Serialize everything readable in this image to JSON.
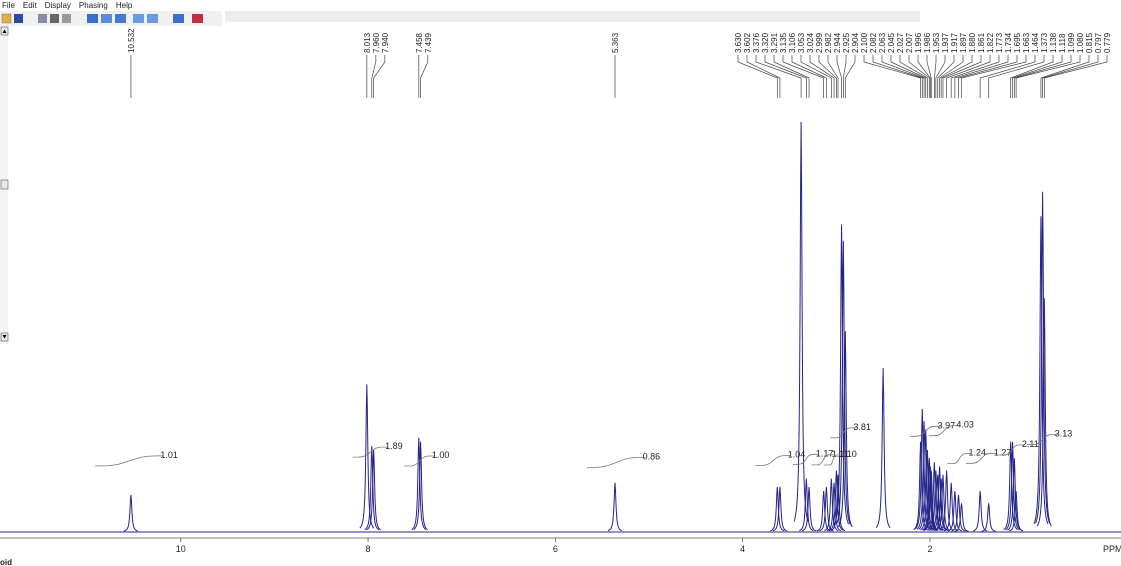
{
  "menu": [
    "File",
    "Edit",
    "Display",
    "Phasing",
    "Help"
  ],
  "status_text": "oid",
  "chart_data": {
    "type": "spectrum",
    "x_label": "PPM",
    "xlim": [
      11.93,
      -0.04
    ],
    "ylim": [
      0,
      100
    ],
    "xticks": [
      10,
      8,
      6,
      4,
      2
    ],
    "color": "#24248a",
    "x": [
      10.532,
      8.013,
      7.96,
      7.94,
      7.458,
      7.439,
      5.363,
      3.63,
      3.602,
      3.376,
      3.32,
      3.291,
      3.135,
      3.106,
      3.053,
      3.024,
      2.999,
      2.982,
      2.944,
      2.925,
      2.904,
      2.5,
      2.1,
      2.082,
      2.063,
      2.045,
      2.027,
      2.007,
      1.996,
      1.986,
      1.953,
      1.937,
      1.917,
      1.897,
      1.88,
      1.861,
      1.822,
      1.773,
      1.734,
      1.695,
      1.663,
      1.464,
      1.373,
      1.138,
      1.118,
      1.099,
      1.08,
      0.815,
      0.797,
      0.779
    ],
    "values": [
      9,
      36,
      21,
      20,
      23,
      22,
      12,
      11,
      11,
      100,
      13,
      11,
      10,
      11,
      13,
      12,
      15,
      14,
      75,
      71,
      49,
      40,
      22,
      30,
      27,
      25,
      20,
      18,
      16,
      15,
      17,
      15,
      14,
      16,
      13,
      14,
      15,
      12,
      10,
      9,
      7,
      10,
      7,
      22,
      22,
      18,
      10,
      77,
      83,
      57
    ],
    "peak_labels": {
      "values": [
        10.532,
        8.013,
        7.96,
        7.94,
        7.458,
        7.439,
        5.363,
        3.63,
        3.602,
        3.376,
        3.32,
        3.291,
        3.135,
        3.106,
        3.053,
        3.024,
        2.999,
        2.982,
        2.944,
        2.925,
        2.904,
        2.1,
        2.082,
        2.063,
        2.045,
        2.027,
        2.007,
        1.996,
        1.986,
        1.953,
        1.937,
        1.917,
        1.897,
        1.88,
        1.861,
        1.822,
        1.773,
        1.734,
        1.695,
        1.663,
        1.464,
        1.373,
        1.138,
        1.118,
        1.099,
        1.08,
        0.815,
        0.797,
        0.779
      ],
      "value_labels": [
        "10.532",
        "8.013",
        "7.960",
        "7.940",
        "7.458",
        "7.439",
        "5.363",
        "3.630",
        "3.602",
        "3.376",
        "3.320",
        "3.291",
        "3.135",
        "3.106",
        "3.053",
        "3.024",
        "2.999",
        "2.982",
        "2.944",
        "2.925",
        "2.904",
        "2.100",
        "2.082",
        "2.063",
        "2.045",
        "2.027",
        "2.007",
        "1.996",
        "1.986",
        "1.953",
        "1.937",
        "1.917",
        "1.897",
        "1.880",
        "1.861",
        "1.822",
        "1.773",
        "1.734",
        "1.695",
        "1.663",
        "1.464",
        "1.373",
        "1.138",
        "1.118",
        "1.099",
        "1.080",
        "0.815",
        "0.797",
        "0.779"
      ]
    },
    "integrals": {
      "values": [
        1.01,
        1.89,
        1.0,
        0.86,
        1.04,
        1.17,
        1.11,
        1.1,
        3.81,
        3.97,
        4.03,
        1.24,
        1.27,
        2.11,
        3.13
      ],
      "value_labels": [
        "1.01",
        "1.89",
        "1.00",
        "0.86",
        "1.04",
        "1.17",
        "1.11",
        "1.10",
        "3.81",
        "3.97",
        "4.03",
        "1.24",
        "1.27",
        "2.11",
        "3.13"
      ],
      "ranges": [
        [
          10.85,
          10.25
        ],
        [
          8.1,
          7.85
        ],
        [
          7.55,
          7.35
        ],
        [
          5.6,
          5.1
        ],
        [
          3.8,
          3.55
        ],
        [
          3.4,
          3.25
        ],
        [
          3.2,
          3.08
        ],
        [
          3.07,
          3.0
        ],
        [
          3.0,
          2.85
        ],
        [
          2.15,
          1.95
        ],
        [
          1.95,
          1.75
        ],
        [
          1.75,
          1.62
        ],
        [
          1.55,
          1.35
        ],
        [
          1.2,
          1.05
        ],
        [
          0.9,
          0.7
        ]
      ]
    }
  }
}
